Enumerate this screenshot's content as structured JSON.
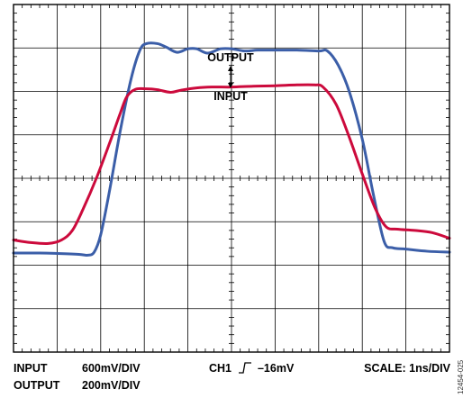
{
  "chart_data": {
    "type": "line",
    "xlabel": "",
    "ylabel": "",
    "x_divisions": 10,
    "y_divisions": 8,
    "xlim": [
      0,
      10
    ],
    "ylim": [
      0,
      8
    ],
    "grid": true,
    "series": [
      {
        "name": "OUTPUT",
        "color": "#3b5ea8",
        "points": [
          [
            0,
            2.28
          ],
          [
            0.6,
            2.28
          ],
          [
            1,
            2.27
          ],
          [
            1.5,
            2.25
          ],
          [
            1.7,
            2.23
          ],
          [
            1.85,
            2.3
          ],
          [
            2,
            2.7
          ],
          [
            2.2,
            3.7
          ],
          [
            2.45,
            5.1
          ],
          [
            2.7,
            6.3
          ],
          [
            2.9,
            6.95
          ],
          [
            3.05,
            7.1
          ],
          [
            3.3,
            7.1
          ],
          [
            3.5,
            7.02
          ],
          [
            3.75,
            6.9
          ],
          [
            4.0,
            6.98
          ],
          [
            4.2,
            6.98
          ],
          [
            4.45,
            6.88
          ],
          [
            4.75,
            6.98
          ],
          [
            5.0,
            6.98
          ],
          [
            5.3,
            6.93
          ],
          [
            5.6,
            6.95
          ],
          [
            6.0,
            6.95
          ],
          [
            6.5,
            6.95
          ],
          [
            7.0,
            6.93
          ],
          [
            7.2,
            6.93
          ],
          [
            7.45,
            6.6
          ],
          [
            7.7,
            6.0
          ],
          [
            8.0,
            4.9
          ],
          [
            8.25,
            3.65
          ],
          [
            8.5,
            2.55
          ],
          [
            8.7,
            2.4
          ],
          [
            9.0,
            2.37
          ],
          [
            9.5,
            2.32
          ],
          [
            10,
            2.3
          ]
        ]
      },
      {
        "name": "INPUT",
        "color": "#cc0a3c",
        "points": [
          [
            0,
            2.58
          ],
          [
            0.4,
            2.52
          ],
          [
            0.8,
            2.5
          ],
          [
            1.1,
            2.58
          ],
          [
            1.35,
            2.8
          ],
          [
            1.6,
            3.3
          ],
          [
            1.9,
            4.0
          ],
          [
            2.2,
            4.8
          ],
          [
            2.45,
            5.5
          ],
          [
            2.6,
            5.88
          ],
          [
            2.8,
            6.05
          ],
          [
            3.05,
            6.06
          ],
          [
            3.3,
            6.04
          ],
          [
            3.6,
            5.98
          ],
          [
            3.85,
            6.03
          ],
          [
            4.2,
            6.08
          ],
          [
            4.55,
            6.1
          ],
          [
            5.0,
            6.1
          ],
          [
            5.5,
            6.12
          ],
          [
            6.0,
            6.13
          ],
          [
            6.5,
            6.15
          ],
          [
            6.9,
            6.15
          ],
          [
            7.1,
            6.1
          ],
          [
            7.4,
            5.7
          ],
          [
            7.7,
            4.95
          ],
          [
            8.0,
            4.1
          ],
          [
            8.3,
            3.3
          ],
          [
            8.55,
            2.88
          ],
          [
            8.8,
            2.83
          ],
          [
            9.2,
            2.8
          ],
          [
            9.6,
            2.75
          ],
          [
            10,
            2.62
          ]
        ]
      }
    ],
    "annotations": {
      "output": "OUTPUT",
      "input": "INPUT"
    },
    "footer": {
      "input_label": "INPUT",
      "input_scale": "600mV/DIV",
      "output_label": "OUTPUT",
      "output_scale": "200mV/DIV",
      "trigger_channel": "CH1",
      "trigger_level": "–16mV",
      "time_scale": "SCALE: 1ns/DIV"
    },
    "doc_id": "12454-025"
  }
}
